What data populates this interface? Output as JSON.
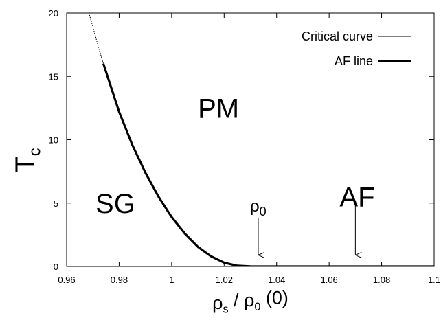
{
  "chart_data": {
    "type": "line",
    "title": "",
    "xlabel": "ρ_s / ρ_0 (0)",
    "ylabel": "T_c",
    "xlim": [
      0.96,
      1.1
    ],
    "ylim": [
      0,
      20
    ],
    "x_ticks": [
      0.96,
      0.98,
      1.0,
      1.02,
      1.04,
      1.06,
      1.08,
      1.1
    ],
    "x_tick_labels": [
      "0.96",
      "0.98",
      "1",
      "1.02",
      "1.04",
      "1.06",
      "1.08",
      "1.1"
    ],
    "y_ticks": [
      0,
      5,
      10,
      15,
      20
    ],
    "y_tick_labels": [
      "0",
      "5",
      "10",
      "15",
      "20"
    ],
    "grid": false,
    "legend_position": "top-right",
    "series": [
      {
        "name": "Critical curve",
        "style": "thin dotted",
        "x": [
          0.9685,
          0.97,
          0.972,
          0.974
        ],
        "y": [
          20.0,
          18.9,
          17.4,
          16.0
        ]
      },
      {
        "name": "AF line",
        "style": "thick solid",
        "x": [
          0.974,
          0.98,
          0.985,
          0.99,
          0.995,
          1.0,
          1.005,
          1.01,
          1.015,
          1.02,
          1.025,
          1.03,
          1.033,
          1.04,
          1.06,
          1.08,
          1.1
        ],
        "y": [
          16.0,
          12.2,
          9.6,
          7.4,
          5.5,
          3.9,
          2.6,
          1.55,
          0.8,
          0.3,
          0.06,
          0.005,
          0.0,
          0.0,
          0.0,
          0.0,
          0.0
        ]
      }
    ],
    "region_labels": [
      {
        "text": "PM",
        "x": 1.01,
        "y": 12.5
      },
      {
        "text": "SG",
        "x": 0.971,
        "y": 5.0
      },
      {
        "text": "AF",
        "x": 1.064,
        "y": 5.5
      }
    ],
    "annotations": [
      {
        "label": "ρ0",
        "x": 1.033,
        "arrow_from_y": 3.8,
        "arrow_to_y": 0.9
      },
      {
        "label": "",
        "x": 1.07,
        "arrow_from_y": 4.8,
        "arrow_to_y": 0.9
      }
    ],
    "legend": [
      {
        "label": "Critical curve"
      },
      {
        "label": "AF line"
      }
    ]
  }
}
